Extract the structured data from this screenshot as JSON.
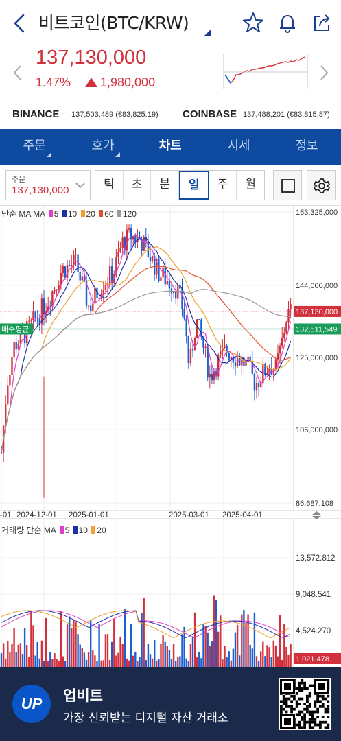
{
  "header": {
    "title": "비트코인(BTC/KRW)",
    "icons": [
      "back-arrow-icon",
      "star-icon",
      "bell-icon",
      "share-icon"
    ]
  },
  "ticker": {
    "price": "137,130,000",
    "change_rate": "1.47%",
    "change_amount": "1,980,000",
    "up_color": "#d1303c"
  },
  "exchanges": [
    {
      "name": "BINANCE",
      "value": "137,503,489 (€83,825.19)"
    },
    {
      "name": "COINBASE",
      "value": "137,488,201 (€83,815.87)"
    }
  ],
  "tabs": [
    {
      "label": "주문"
    },
    {
      "label": "호가"
    },
    {
      "label": "차트"
    },
    {
      "label": "시세"
    },
    {
      "label": "정보"
    }
  ],
  "toolbar": {
    "order_label": "주문",
    "order_value": "137,130,000",
    "intervals": [
      "틱",
      "초",
      "분",
      "일",
      "주",
      "월"
    ],
    "active_interval": "일"
  },
  "chart_data": {
    "type": "candlestick",
    "legend_label": "단순 MA",
    "ma_periods": [
      "5",
      "10",
      "20",
      "60",
      "120"
    ],
    "ma_colors": [
      "#e040c8",
      "#1f2fa8",
      "#f0a030",
      "#e05030",
      "#999999"
    ],
    "y_ticks": [
      "163,325,000",
      "144,000,000",
      "125,000,000",
      "106,000,000",
      "86,687,108"
    ],
    "ylim": [
      86687108,
      163325000
    ],
    "current_price_label": "137,130,000",
    "avg_buy_label": "매수평균",
    "avg_buy_price": "132,511,549",
    "x_ticks": [
      "-01",
      "2024-12-01",
      "2025-01-01",
      "2025-03-01",
      "2025-04-01"
    ],
    "volume": {
      "legend_label": "거래량 단순 MA",
      "ma_periods": [
        "5",
        "10",
        "20"
      ],
      "y_ticks": [
        "13,572.812",
        "9,048.541",
        "4,524.270"
      ],
      "current_label": "1,021.478"
    }
  },
  "banner": {
    "brand": "UP",
    "title": "업비트",
    "subtitle": "가장 신뢰받는 디지털 자산 거래소"
  }
}
